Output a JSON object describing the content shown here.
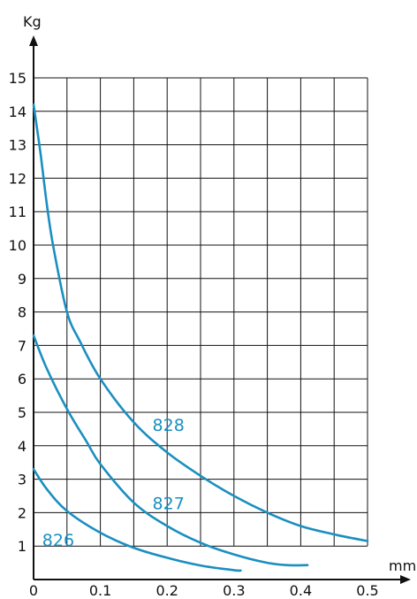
{
  "chart_data": {
    "type": "line",
    "title": "",
    "xlabel": "mm",
    "ylabel": "Kg",
    "xlim": [
      0,
      0.5
    ],
    "ylim": [
      0,
      15
    ],
    "x_ticks": [
      "0",
      "0.1",
      "0.2",
      "0.3",
      "0.4",
      "0.5"
    ],
    "y_ticks": [
      "1",
      "2",
      "3",
      "4",
      "5",
      "6",
      "7",
      "8",
      "9",
      "10",
      "11",
      "12",
      "13",
      "14",
      "15"
    ],
    "grid": true,
    "series": [
      {
        "name": "826",
        "points": [
          [
            0,
            3.3
          ],
          [
            0.02,
            2.7
          ],
          [
            0.05,
            2.05
          ],
          [
            0.1,
            1.4
          ],
          [
            0.15,
            0.95
          ],
          [
            0.2,
            0.65
          ],
          [
            0.25,
            0.42
          ],
          [
            0.3,
            0.28
          ],
          [
            0.31,
            0.27
          ]
        ]
      },
      {
        "name": "827",
        "points": [
          [
            0,
            7.3
          ],
          [
            0.02,
            6.3
          ],
          [
            0.05,
            5.1
          ],
          [
            0.08,
            4.1
          ],
          [
            0.1,
            3.45
          ],
          [
            0.15,
            2.3
          ],
          [
            0.2,
            1.6
          ],
          [
            0.25,
            1.1
          ],
          [
            0.3,
            0.75
          ],
          [
            0.35,
            0.5
          ],
          [
            0.38,
            0.43
          ],
          [
            0.41,
            0.43
          ]
        ]
      },
      {
        "name": "828",
        "points": [
          [
            0,
            14.2
          ],
          [
            0.01,
            12.8
          ],
          [
            0.02,
            11.2
          ],
          [
            0.03,
            9.9
          ],
          [
            0.05,
            8.0
          ],
          [
            0.07,
            7.1
          ],
          [
            0.1,
            6.0
          ],
          [
            0.15,
            4.7
          ],
          [
            0.2,
            3.8
          ],
          [
            0.25,
            3.1
          ],
          [
            0.3,
            2.5
          ],
          [
            0.35,
            2.0
          ],
          [
            0.4,
            1.6
          ],
          [
            0.45,
            1.35
          ],
          [
            0.5,
            1.15
          ]
        ]
      }
    ]
  },
  "colors": {
    "curve": "#1a8fc0",
    "grid": "#111111",
    "label": "#1a8fc0"
  }
}
